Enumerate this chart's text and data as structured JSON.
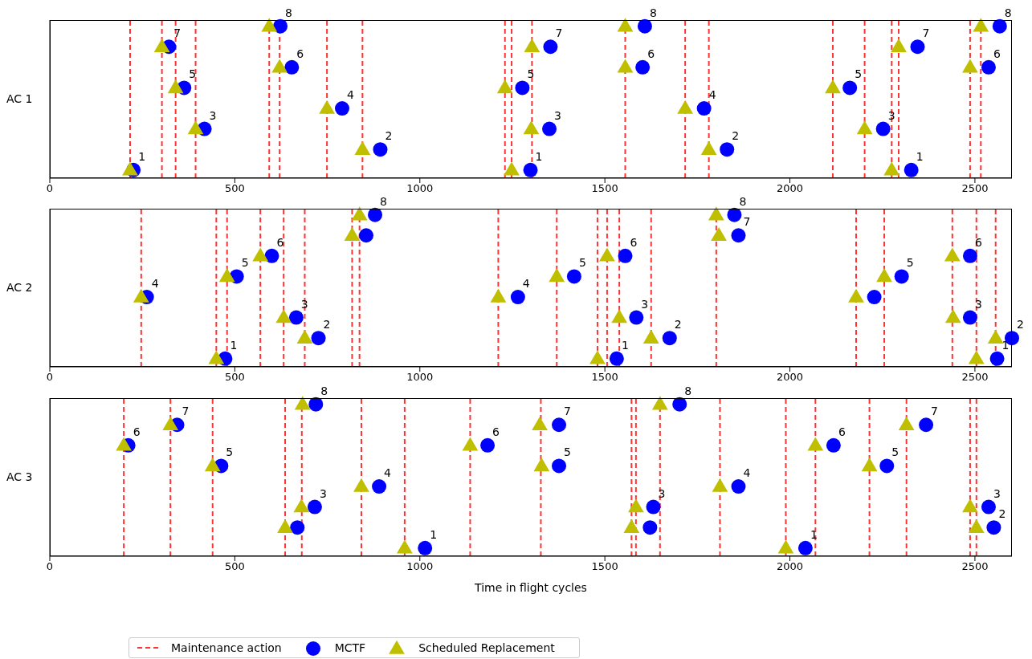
{
  "chart_data": [
    {
      "type": "scatter",
      "ylabel": "AC 1",
      "xlim": [
        0,
        2600
      ],
      "xticks": [
        0,
        500,
        1000,
        1500,
        2000,
        2500
      ],
      "ylim": [
        0.6,
        8.3
      ],
      "tick_labels": "x",
      "series": [
        {
          "color": "#0000ff",
          "marker": "circle",
          "x": [
            226,
            322,
            363,
            418,
            623,
            654,
            790,
            893,
            1277,
            1299,
            1353,
            1350,
            1608,
            1602,
            1768,
            1830,
            2162,
            2252,
            2328,
            2345,
            2537,
            2567
          ],
          "values": [
            1,
            7,
            5,
            3,
            8,
            6,
            4,
            2,
            5,
            1,
            7,
            3,
            8,
            6,
            4,
            2,
            5,
            3,
            1,
            7,
            6,
            8
          ],
          "value_labels": [
            "1",
            "7",
            "5",
            "3",
            "8",
            "6",
            "4",
            "2",
            "5",
            "1",
            "7",
            "3",
            "8",
            "6",
            "4",
            "2",
            "5",
            "3",
            "1",
            "7",
            "6",
            "8"
          ]
        },
        {
          "color": "#bfbf00",
          "marker": "triangle",
          "x": [
            217,
            303,
            340,
            394,
            593,
            621,
            749,
            845,
            1230,
            1248,
            1303,
            1301,
            1555,
            1555,
            1717,
            1781,
            2116,
            2202,
            2275,
            2294,
            2487,
            2516
          ],
          "values": [
            1,
            7,
            5,
            3,
            8,
            6,
            4,
            2,
            5,
            1,
            7,
            3,
            8,
            6,
            4,
            2,
            5,
            3,
            1,
            7,
            6,
            8
          ]
        }
      ],
      "ref_lines": [
        {
          "axis": "x",
          "value": 217,
          "color": "#ff3333",
          "line_style": "dashed"
        },
        {
          "axis": "x",
          "value": 303,
          "color": "#ff3333",
          "line_style": "dashed"
        },
        {
          "axis": "x",
          "value": 340,
          "color": "#ff3333",
          "line_style": "dashed"
        },
        {
          "axis": "x",
          "value": 394,
          "color": "#ff3333",
          "line_style": "dashed"
        },
        {
          "axis": "x",
          "value": 593,
          "color": "#ff3333",
          "line_style": "dashed"
        },
        {
          "axis": "x",
          "value": 621,
          "color": "#ff3333",
          "line_style": "dashed"
        },
        {
          "axis": "x",
          "value": 749,
          "color": "#ff3333",
          "line_style": "dashed"
        },
        {
          "axis": "x",
          "value": 845,
          "color": "#ff3333",
          "line_style": "dashed"
        },
        {
          "axis": "x",
          "value": 1230,
          "color": "#ff3333",
          "line_style": "dashed"
        },
        {
          "axis": "x",
          "value": 1248,
          "color": "#ff3333",
          "line_style": "dashed"
        },
        {
          "axis": "x",
          "value": 1303,
          "color": "#ff3333",
          "line_style": "dashed"
        },
        {
          "axis": "x",
          "value": 1555,
          "color": "#ff3333",
          "line_style": "dashed"
        },
        {
          "axis": "x",
          "value": 1717,
          "color": "#ff3333",
          "line_style": "dashed"
        },
        {
          "axis": "x",
          "value": 1781,
          "color": "#ff3333",
          "line_style": "dashed"
        },
        {
          "axis": "x",
          "value": 2116,
          "color": "#ff3333",
          "line_style": "dashed"
        },
        {
          "axis": "x",
          "value": 2202,
          "color": "#ff3333",
          "line_style": "dashed"
        },
        {
          "axis": "x",
          "value": 2275,
          "color": "#ff3333",
          "line_style": "dashed"
        },
        {
          "axis": "x",
          "value": 2294,
          "color": "#ff3333",
          "line_style": "dashed"
        },
        {
          "axis": "x",
          "value": 2487,
          "color": "#ff3333",
          "line_style": "dashed"
        },
        {
          "axis": "x",
          "value": 2516,
          "color": "#ff3333",
          "line_style": "dashed"
        }
      ]
    },
    {
      "type": "scatter",
      "ylabel": "AC 2",
      "xlim": [
        0,
        2600
      ],
      "xticks": [
        0,
        500,
        1000,
        1500,
        2000,
        2500
      ],
      "ylim": [
        0.6,
        8.3
      ],
      "tick_labels": "x",
      "series": [
        {
          "color": "#0000ff",
          "marker": "circle",
          "x": [
            262,
            474,
            505,
            600,
            666,
            726,
            855,
            879,
            1265,
            1417,
            1532,
            1555,
            1585,
            1675,
            1850,
            1861,
            2228,
            2302,
            2487,
            2487,
            2560,
            2600
          ],
          "values": [
            4,
            1,
            5,
            6,
            3,
            2,
            7,
            8,
            4,
            5,
            1,
            6,
            3,
            2,
            8,
            7,
            4,
            5,
            6,
            3,
            1,
            2
          ],
          "value_labels": [
            "4",
            "1",
            "5",
            "6",
            "3",
            "2",
            null,
            "8",
            "4",
            "5",
            "1",
            "6",
            "3",
            "2",
            "8",
            "7",
            null,
            "5",
            "6",
            "3",
            "1",
            "2"
          ]
        },
        {
          "color": "#bfbf00",
          "marker": "triangle",
          "x": [
            247,
            450,
            479,
            569,
            632,
            689,
            817,
            837,
            1212,
            1370,
            1480,
            1506,
            1539,
            1625,
            1801,
            1808,
            2179,
            2255,
            2439,
            2441,
            2504,
            2556
          ],
          "values": [
            4,
            1,
            5,
            6,
            3,
            2,
            7,
            8,
            4,
            5,
            1,
            6,
            3,
            2,
            8,
            7,
            4,
            5,
            6,
            3,
            1,
            2
          ]
        }
      ],
      "ref_lines": [
        {
          "axis": "x",
          "value": 247,
          "color": "#ff3333",
          "line_style": "dashed"
        },
        {
          "axis": "x",
          "value": 450,
          "color": "#ff3333",
          "line_style": "dashed"
        },
        {
          "axis": "x",
          "value": 479,
          "color": "#ff3333",
          "line_style": "dashed"
        },
        {
          "axis": "x",
          "value": 569,
          "color": "#ff3333",
          "line_style": "dashed"
        },
        {
          "axis": "x",
          "value": 632,
          "color": "#ff3333",
          "line_style": "dashed"
        },
        {
          "axis": "x",
          "value": 689,
          "color": "#ff3333",
          "line_style": "dashed"
        },
        {
          "axis": "x",
          "value": 817,
          "color": "#ff3333",
          "line_style": "dashed"
        },
        {
          "axis": "x",
          "value": 837,
          "color": "#ff3333",
          "line_style": "dashed"
        },
        {
          "axis": "x",
          "value": 1212,
          "color": "#ff3333",
          "line_style": "dashed"
        },
        {
          "axis": "x",
          "value": 1370,
          "color": "#ff3333",
          "line_style": "dashed"
        },
        {
          "axis": "x",
          "value": 1480,
          "color": "#ff3333",
          "line_style": "dashed"
        },
        {
          "axis": "x",
          "value": 1506,
          "color": "#ff3333",
          "line_style": "dashed"
        },
        {
          "axis": "x",
          "value": 1539,
          "color": "#ff3333",
          "line_style": "dashed"
        },
        {
          "axis": "x",
          "value": 1625,
          "color": "#ff3333",
          "line_style": "dashed"
        },
        {
          "axis": "x",
          "value": 1801,
          "color": "#ff3333",
          "line_style": "dashed"
        },
        {
          "axis": "x",
          "value": 2179,
          "color": "#ff3333",
          "line_style": "dashed"
        },
        {
          "axis": "x",
          "value": 2255,
          "color": "#ff3333",
          "line_style": "dashed"
        },
        {
          "axis": "x",
          "value": 2439,
          "color": "#ff3333",
          "line_style": "dashed"
        },
        {
          "axis": "x",
          "value": 2504,
          "color": "#ff3333",
          "line_style": "dashed"
        },
        {
          "axis": "x",
          "value": 2556,
          "color": "#ff3333",
          "line_style": "dashed"
        }
      ]
    },
    {
      "type": "scatter",
      "ylabel": "AC 3",
      "xlabel": "Time in flight cycles",
      "xlim": [
        0,
        2600
      ],
      "xticks": [
        0,
        500,
        1000,
        1500,
        2000,
        2500
      ],
      "ylim": [
        0.6,
        8.3
      ],
      "tick_labels": "x",
      "legend": "bottom",
      "annotations": [
        "Maintenance action"
      ],
      "series": [
        {
          "name": "MCTF",
          "color": "#0000ff",
          "marker": "circle",
          "x": [
            212,
            344,
            463,
            669,
            719,
            716,
            890,
            1014,
            1183,
            1376,
            1376,
            1622,
            1631,
            1702,
            1861,
            2042,
            2118,
            2262,
            2368,
            2537,
            2551
          ],
          "values": [
            6,
            7,
            5,
            2,
            8,
            3,
            4,
            1,
            6,
            7,
            5,
            2,
            3,
            8,
            4,
            1,
            6,
            5,
            7,
            3,
            2
          ],
          "value_labels": [
            "6",
            "7",
            "5",
            null,
            "8",
            "3",
            "4",
            "1",
            "6",
            "7",
            "5",
            null,
            "3",
            "8",
            "4",
            "1",
            "6",
            "5",
            "7",
            "3",
            "2"
          ]
        },
        {
          "name": "Scheduled Replacement",
          "color": "#bfbf00",
          "marker": "triangle",
          "x": [
            200,
            326,
            440,
            636,
            683,
            680,
            842,
            959,
            1136,
            1324,
            1329,
            1572,
            1584,
            1649,
            1811,
            1989,
            2069,
            2215,
            2315,
            2487,
            2504
          ],
          "values": [
            6,
            7,
            5,
            2,
            8,
            3,
            4,
            1,
            6,
            7,
            5,
            2,
            3,
            8,
            4,
            1,
            6,
            5,
            7,
            3,
            2
          ]
        }
      ],
      "ref_lines": [
        {
          "axis": "x",
          "value": 200,
          "color": "#ff3333",
          "line_style": "dashed"
        },
        {
          "axis": "x",
          "value": 326,
          "color": "#ff3333",
          "line_style": "dashed"
        },
        {
          "axis": "x",
          "value": 440,
          "color": "#ff3333",
          "line_style": "dashed"
        },
        {
          "axis": "x",
          "value": 636,
          "color": "#ff3333",
          "line_style": "dashed"
        },
        {
          "axis": "x",
          "value": 681,
          "color": "#ff3333",
          "line_style": "dashed"
        },
        {
          "axis": "x",
          "value": 842,
          "color": "#ff3333",
          "line_style": "dashed"
        },
        {
          "axis": "x",
          "value": 959,
          "color": "#ff3333",
          "line_style": "dashed"
        },
        {
          "axis": "x",
          "value": 1136,
          "color": "#ff3333",
          "line_style": "dashed"
        },
        {
          "axis": "x",
          "value": 1327,
          "color": "#ff3333",
          "line_style": "dashed"
        },
        {
          "axis": "x",
          "value": 1572,
          "color": "#ff3333",
          "line_style": "dashed"
        },
        {
          "axis": "x",
          "value": 1584,
          "color": "#ff3333",
          "line_style": "dashed"
        },
        {
          "axis": "x",
          "value": 1649,
          "color": "#ff3333",
          "line_style": "dashed"
        },
        {
          "axis": "x",
          "value": 1811,
          "color": "#ff3333",
          "line_style": "dashed"
        },
        {
          "axis": "x",
          "value": 1989,
          "color": "#ff3333",
          "line_style": "dashed"
        },
        {
          "axis": "x",
          "value": 2069,
          "color": "#ff3333",
          "line_style": "dashed"
        },
        {
          "axis": "x",
          "value": 2215,
          "color": "#ff3333",
          "line_style": "dashed"
        },
        {
          "axis": "x",
          "value": 2315,
          "color": "#ff3333",
          "line_style": "dashed"
        },
        {
          "axis": "x",
          "value": 2487,
          "color": "#ff3333",
          "line_style": "dashed"
        },
        {
          "axis": "x",
          "value": 2504,
          "color": "#ff3333",
          "line_style": "dashed"
        }
      ]
    }
  ]
}
